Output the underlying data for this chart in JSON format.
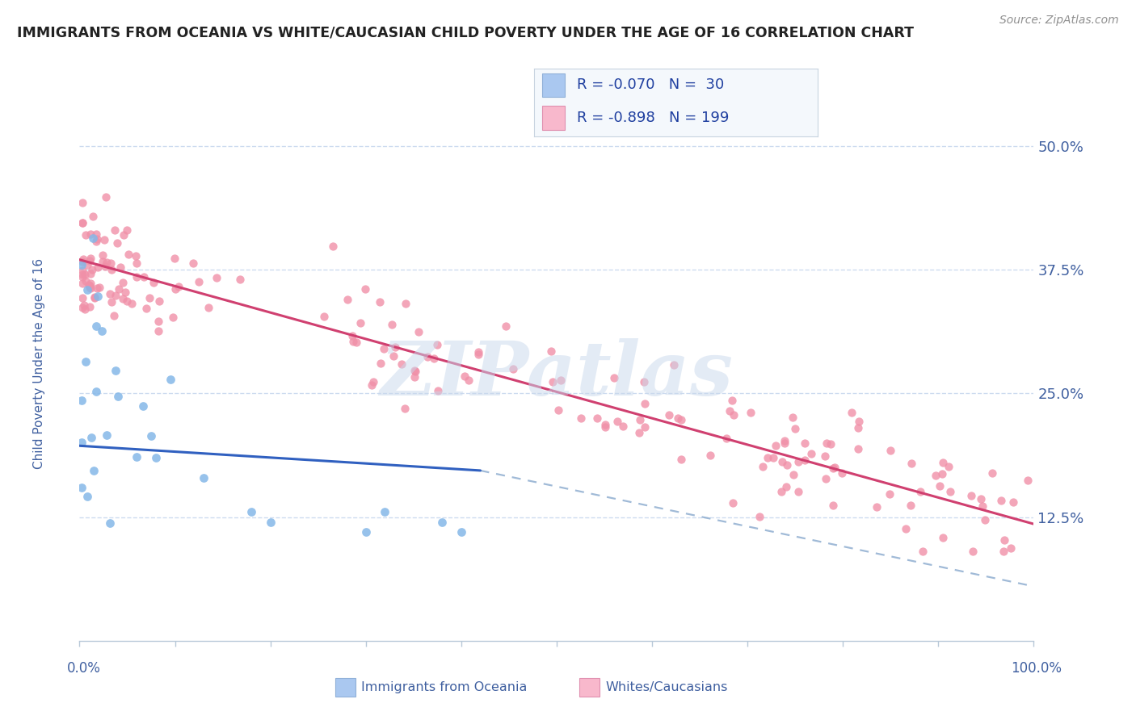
{
  "title": "IMMIGRANTS FROM OCEANIA VS WHITE/CAUCASIAN CHILD POVERTY UNDER THE AGE OF 16 CORRELATION CHART",
  "source_text": "Source: ZipAtlas.com",
  "ylabel": "Child Poverty Under the Age of 16",
  "y_ticks": [
    0.125,
    0.25,
    0.375,
    0.5
  ],
  "y_tick_labels": [
    "12.5%",
    "25.0%",
    "37.5%",
    "50.0%"
  ],
  "xlim": [
    0.0,
    1.0
  ],
  "ylim": [
    0.0,
    0.56
  ],
  "scatter_blue_color": "#85b8e8",
  "scatter_pink_color": "#f090a8",
  "line_blue_color": "#3060c0",
  "line_pink_color": "#d04070",
  "dashed_line_color": "#90aed0",
  "background_color": "#ffffff",
  "grid_color": "#c8d8ee",
  "title_color": "#222222",
  "axis_label_color": "#4060a0",
  "watermark": "ZIPatlas",
  "legend_blue_text": "R = -0.070   N =  30",
  "legend_pink_text": "R = -0.898   N = 199",
  "legend_blue_color": "#aac8f0",
  "legend_pink_color": "#f8b8cc",
  "legend_text_color": "#2040a0",
  "blue_line_x0": 0.0,
  "blue_line_y0": 0.197,
  "blue_line_x1": 0.42,
  "blue_line_y1": 0.172,
  "pink_line_x0": 0.0,
  "pink_line_y0": 0.385,
  "pink_line_x1": 1.0,
  "pink_line_y1": 0.118,
  "dashed_line_x0": 0.42,
  "dashed_line_y0": 0.172,
  "dashed_line_x1": 1.0,
  "dashed_line_y1": 0.055
}
